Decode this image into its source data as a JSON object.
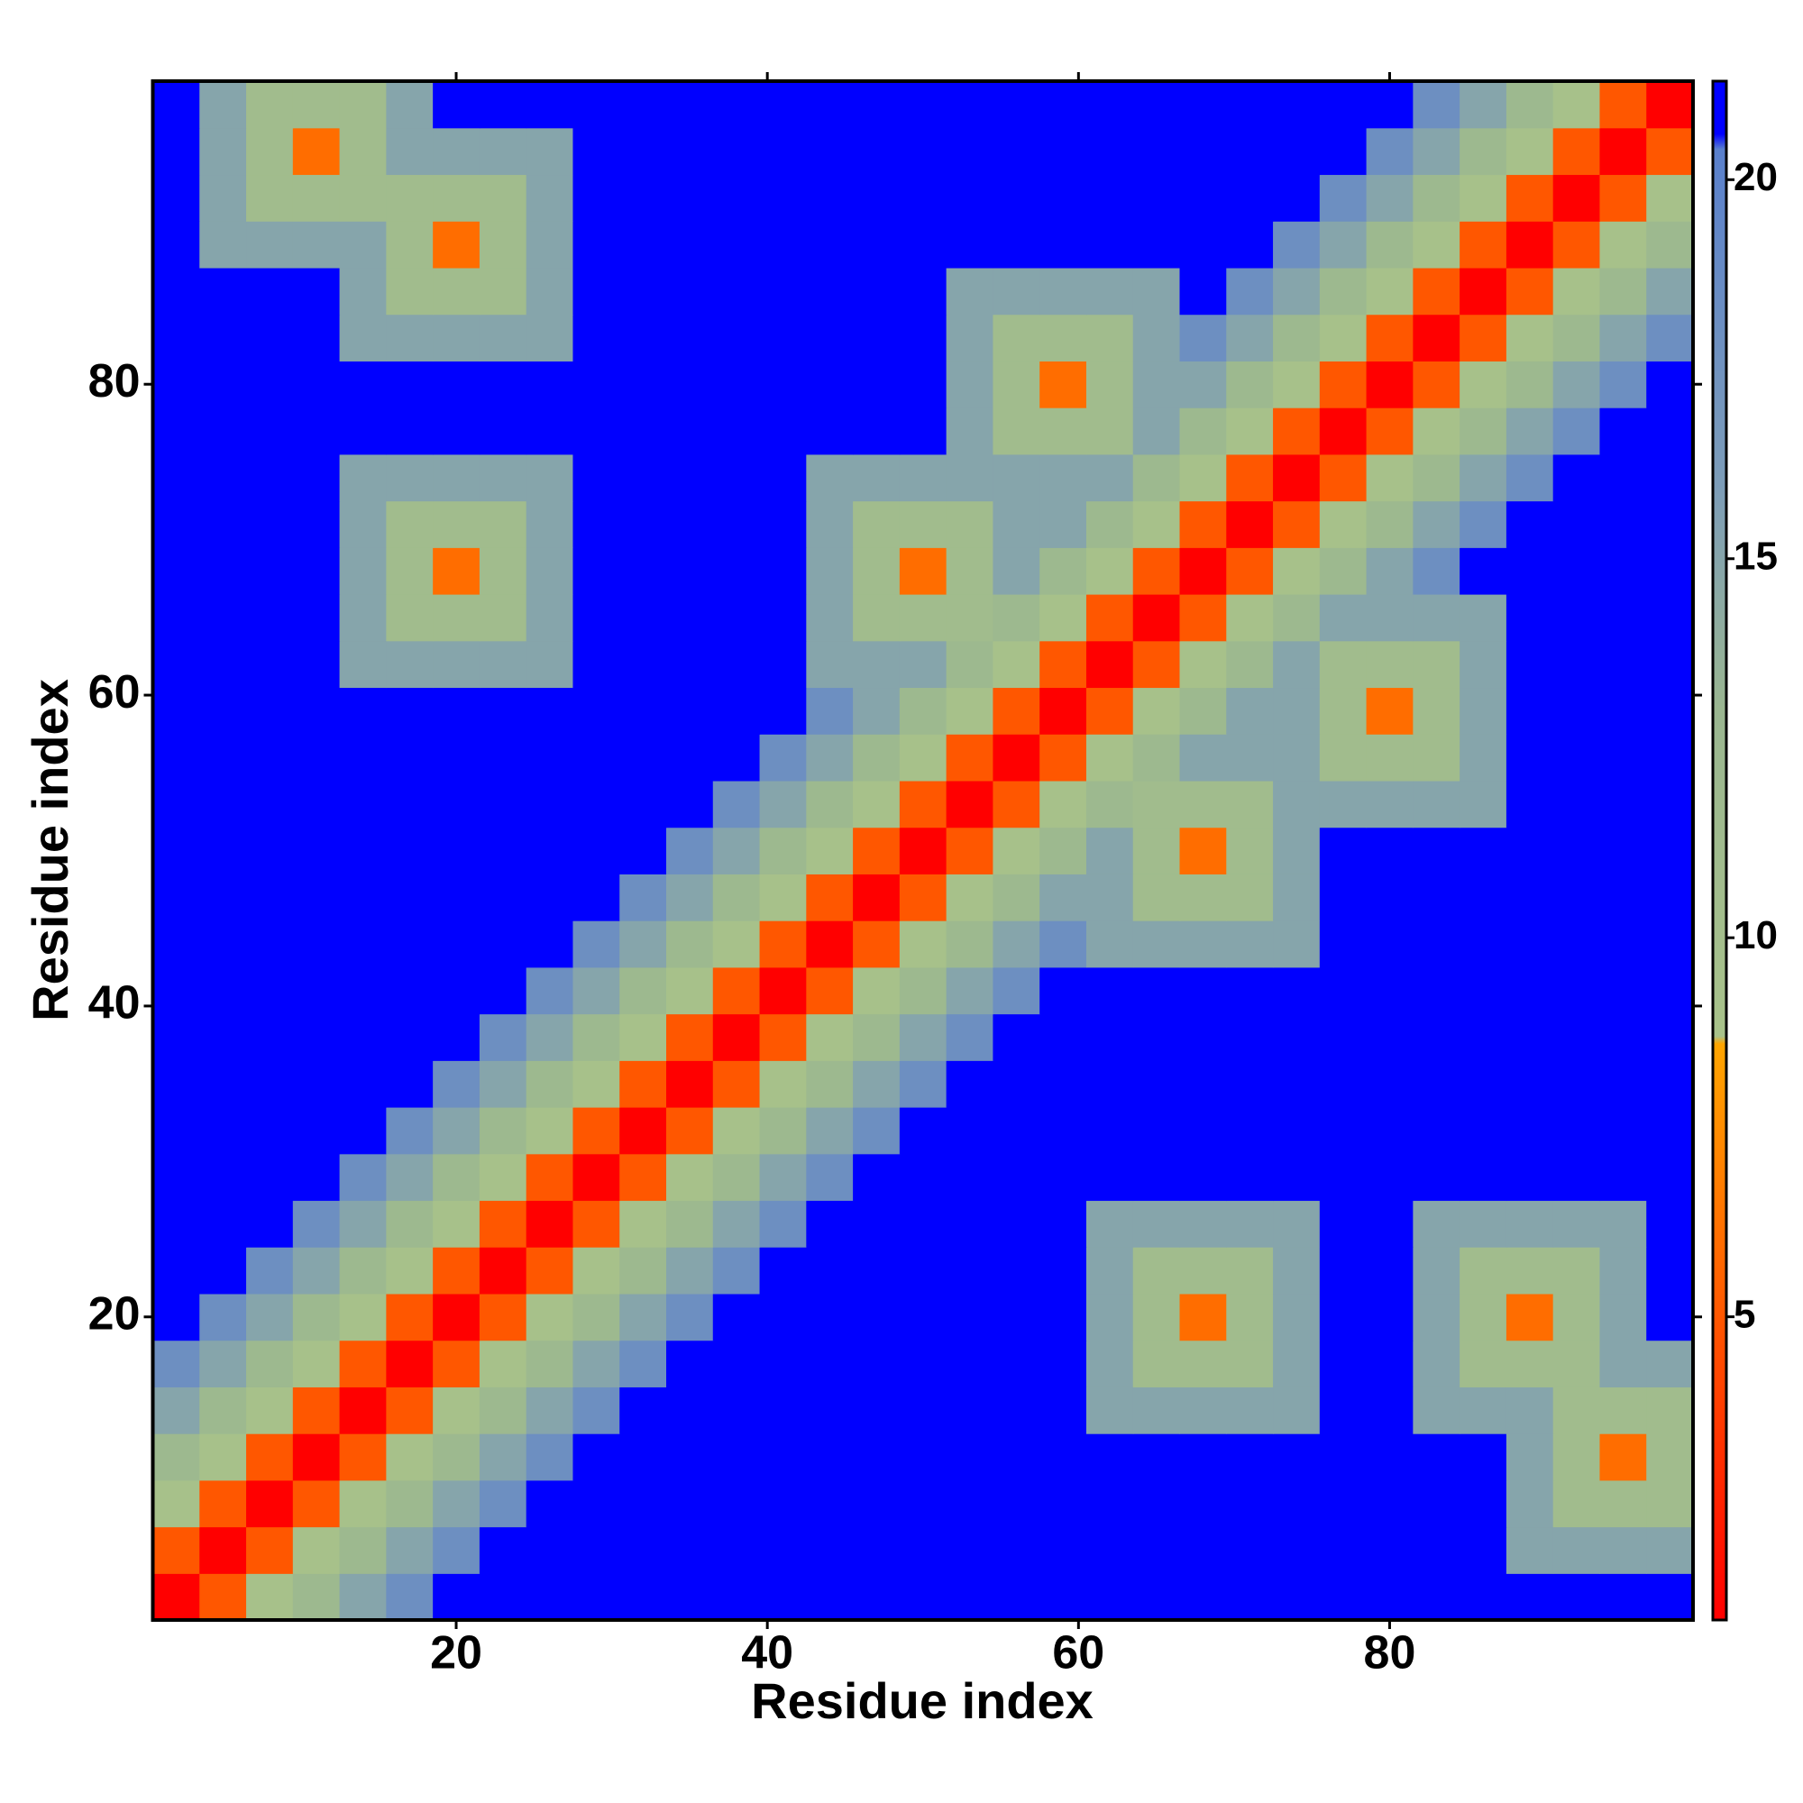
{
  "chart_data": {
    "type": "heatmap",
    "xlabel": "Residue index",
    "ylabel": "Residue index",
    "x": [
      2,
      5,
      8,
      11,
      14,
      17,
      20,
      23,
      26,
      29,
      32,
      35,
      38,
      41,
      44,
      47,
      50,
      53,
      56,
      59,
      62,
      65,
      68,
      71,
      74,
      77,
      80,
      83,
      86,
      89,
      92,
      95,
      98
    ],
    "y": [
      2,
      5,
      8,
      11,
      14,
      17,
      20,
      23,
      26,
      29,
      32,
      35,
      38,
      41,
      44,
      47,
      50,
      53,
      56,
      59,
      62,
      65,
      68,
      71,
      74,
      77,
      80,
      83,
      86,
      89,
      92,
      95,
      98
    ],
    "xlim": [
      0.5,
      99.5
    ],
    "ylim": [
      0.5,
      99.5
    ],
    "xticks": [
      20,
      40,
      60,
      80
    ],
    "yticks": [
      20,
      40,
      60,
      80
    ],
    "clim": [
      1,
      21.3
    ],
    "cticks": [
      5,
      10,
      15,
      20
    ],
    "colorscale": [
      [
        1,
        "#ff0000"
      ],
      [
        8.6,
        "#ffa500"
      ],
      [
        8.7,
        "#a8c28a"
      ],
      [
        13,
        "#9ab690"
      ],
      [
        16,
        "#7c9cb8"
      ],
      [
        20.4,
        "#5a80cc"
      ],
      [
        20.6,
        "#0000ff"
      ],
      [
        21.3,
        "#0000ff"
      ]
    ],
    "z": [
      [
        1,
        5,
        9,
        12,
        15,
        18,
        21,
        21,
        21,
        21,
        21,
        21,
        21,
        21,
        21,
        21,
        21,
        21,
        21,
        21,
        21,
        21,
        21,
        21,
        21,
        21,
        21,
        21,
        21,
        21,
        21,
        21,
        21
      ],
      [
        5,
        1,
        5,
        9,
        12,
        15,
        18,
        21,
        21,
        21,
        21,
        21,
        21,
        21,
        21,
        21,
        21,
        21,
        21,
        21,
        21,
        21,
        21,
        21,
        21,
        21,
        21,
        21,
        21,
        15,
        15,
        15,
        15
      ],
      [
        9,
        5,
        1,
        5,
        9,
        12,
        15,
        18,
        21,
        21,
        21,
        21,
        21,
        21,
        21,
        21,
        21,
        21,
        21,
        21,
        21,
        21,
        21,
        21,
        21,
        21,
        21,
        21,
        21,
        15,
        11,
        11,
        11
      ],
      [
        12,
        9,
        5,
        1,
        5,
        9,
        12,
        15,
        18,
        21,
        21,
        21,
        21,
        21,
        21,
        21,
        21,
        21,
        21,
        21,
        21,
        21,
        21,
        21,
        21,
        21,
        21,
        21,
        21,
        15,
        11,
        6,
        11
      ],
      [
        15,
        12,
        9,
        5,
        1,
        5,
        9,
        12,
        15,
        18,
        21,
        21,
        21,
        21,
        21,
        21,
        21,
        21,
        21,
        21,
        15,
        15,
        15,
        15,
        15,
        21,
        21,
        15,
        15,
        15,
        11,
        11,
        11
      ],
      [
        18,
        15,
        12,
        9,
        5,
        1,
        5,
        9,
        12,
        15,
        18,
        21,
        21,
        21,
        21,
        21,
        21,
        21,
        21,
        21,
        15,
        11,
        11,
        11,
        15,
        21,
        21,
        15,
        11,
        11,
        11,
        15,
        15
      ],
      [
        21,
        18,
        15,
        12,
        9,
        5,
        1,
        5,
        9,
        12,
        15,
        18,
        21,
        21,
        21,
        21,
        21,
        21,
        21,
        21,
        15,
        11,
        6,
        11,
        15,
        21,
        21,
        15,
        11,
        6,
        11,
        15,
        21
      ],
      [
        21,
        21,
        18,
        15,
        12,
        9,
        5,
        1,
        5,
        9,
        12,
        15,
        18,
        21,
        21,
        21,
        21,
        21,
        21,
        21,
        15,
        11,
        11,
        11,
        15,
        21,
        21,
        15,
        11,
        11,
        11,
        15,
        21
      ],
      [
        21,
        21,
        21,
        18,
        15,
        12,
        9,
        5,
        1,
        5,
        9,
        12,
        15,
        18,
        21,
        21,
        21,
        21,
        21,
        21,
        15,
        15,
        15,
        15,
        15,
        21,
        21,
        15,
        15,
        15,
        15,
        15,
        21
      ],
      [
        21,
        21,
        21,
        21,
        18,
        15,
        12,
        9,
        5,
        1,
        5,
        9,
        12,
        15,
        18,
        21,
        21,
        21,
        21,
        21,
        21,
        21,
        21,
        21,
        21,
        21,
        21,
        21,
        21,
        21,
        21,
        21,
        21
      ],
      [
        21,
        21,
        21,
        21,
        21,
        18,
        15,
        12,
        9,
        5,
        1,
        5,
        9,
        12,
        15,
        18,
        21,
        21,
        21,
        21,
        21,
        21,
        21,
        21,
        21,
        21,
        21,
        21,
        21,
        21,
        21,
        21,
        21
      ],
      [
        21,
        21,
        21,
        21,
        21,
        21,
        18,
        15,
        12,
        9,
        5,
        1,
        5,
        9,
        12,
        15,
        18,
        21,
        21,
        21,
        21,
        21,
        21,
        21,
        21,
        21,
        21,
        21,
        21,
        21,
        21,
        21,
        21
      ],
      [
        21,
        21,
        21,
        21,
        21,
        21,
        21,
        18,
        15,
        12,
        9,
        5,
        1,
        5,
        9,
        12,
        15,
        18,
        21,
        21,
        21,
        21,
        21,
        21,
        21,
        21,
        21,
        21,
        21,
        21,
        21,
        21,
        21
      ],
      [
        21,
        21,
        21,
        21,
        21,
        21,
        21,
        21,
        18,
        15,
        12,
        9,
        5,
        1,
        5,
        9,
        12,
        15,
        18,
        21,
        21,
        21,
        21,
        21,
        21,
        21,
        21,
        21,
        21,
        21,
        21,
        21,
        21
      ],
      [
        21,
        21,
        21,
        21,
        21,
        21,
        21,
        21,
        21,
        18,
        15,
        12,
        9,
        5,
        1,
        5,
        9,
        12,
        15,
        18,
        15,
        15,
        15,
        15,
        15,
        21,
        21,
        21,
        21,
        21,
        21,
        21,
        21
      ],
      [
        21,
        21,
        21,
        21,
        21,
        21,
        21,
        21,
        21,
        21,
        18,
        15,
        12,
        9,
        5,
        1,
        5,
        9,
        12,
        15,
        15,
        11,
        11,
        11,
        15,
        21,
        21,
        21,
        21,
        21,
        21,
        21,
        21
      ],
      [
        21,
        21,
        21,
        21,
        21,
        21,
        21,
        21,
        21,
        21,
        21,
        18,
        15,
        12,
        9,
        5,
        1,
        5,
        9,
        12,
        15,
        11,
        6,
        11,
        15,
        21,
        21,
        21,
        21,
        21,
        21,
        21,
        21
      ],
      [
        21,
        21,
        21,
        21,
        21,
        21,
        21,
        21,
        21,
        21,
        21,
        21,
        18,
        15,
        12,
        9,
        5,
        1,
        5,
        9,
        12,
        11,
        11,
        11,
        15,
        15,
        15,
        15,
        15,
        21,
        21,
        21,
        21
      ],
      [
        21,
        21,
        21,
        21,
        21,
        21,
        21,
        21,
        21,
        21,
        21,
        21,
        21,
        18,
        15,
        12,
        9,
        5,
        1,
        5,
        9,
        12,
        15,
        15,
        15,
        11,
        11,
        11,
        15,
        21,
        21,
        21,
        21
      ],
      [
        21,
        21,
        21,
        21,
        21,
        21,
        21,
        21,
        21,
        21,
        21,
        21,
        21,
        21,
        18,
        15,
        12,
        9,
        5,
        1,
        5,
        9,
        12,
        15,
        15,
        11,
        6,
        11,
        15,
        21,
        21,
        21,
        21
      ],
      [
        21,
        21,
        21,
        21,
        15,
        15,
        15,
        15,
        15,
        21,
        21,
        21,
        21,
        21,
        15,
        15,
        15,
        12,
        9,
        5,
        1,
        5,
        9,
        12,
        15,
        11,
        11,
        11,
        15,
        21,
        21,
        21,
        21
      ],
      [
        21,
        21,
        21,
        21,
        15,
        11,
        11,
        11,
        15,
        21,
        21,
        21,
        21,
        21,
        15,
        11,
        11,
        11,
        12,
        9,
        5,
        1,
        5,
        9,
        12,
        15,
        15,
        15,
        15,
        21,
        21,
        21,
        21
      ],
      [
        21,
        21,
        21,
        21,
        15,
        11,
        6,
        11,
        15,
        21,
        21,
        21,
        21,
        21,
        15,
        11,
        6,
        11,
        15,
        12,
        9,
        5,
        1,
        5,
        9,
        12,
        15,
        18,
        21,
        21,
        21,
        21,
        21
      ],
      [
        21,
        21,
        21,
        21,
        15,
        11,
        11,
        11,
        15,
        21,
        21,
        21,
        21,
        21,
        15,
        11,
        11,
        11,
        15,
        15,
        12,
        9,
        5,
        1,
        5,
        9,
        12,
        15,
        18,
        21,
        21,
        21,
        21
      ],
      [
        21,
        21,
        21,
        21,
        15,
        15,
        15,
        15,
        15,
        21,
        21,
        21,
        21,
        21,
        15,
        15,
        15,
        15,
        15,
        15,
        15,
        12,
        9,
        5,
        1,
        5,
        9,
        12,
        15,
        18,
        21,
        21,
        21
      ],
      [
        21,
        21,
        21,
        21,
        21,
        21,
        21,
        21,
        21,
        21,
        21,
        21,
        21,
        21,
        21,
        21,
        21,
        15,
        11,
        11,
        11,
        15,
        12,
        9,
        5,
        1,
        5,
        9,
        12,
        15,
        18,
        21,
        21
      ],
      [
        21,
        21,
        21,
        21,
        21,
        21,
        21,
        21,
        21,
        21,
        21,
        21,
        21,
        21,
        21,
        21,
        21,
        15,
        11,
        6,
        11,
        15,
        15,
        12,
        9,
        5,
        1,
        5,
        9,
        12,
        15,
        18,
        21
      ],
      [
        21,
        21,
        21,
        21,
        15,
        15,
        15,
        15,
        15,
        21,
        21,
        21,
        21,
        21,
        21,
        21,
        21,
        15,
        11,
        11,
        11,
        15,
        18,
        15,
        12,
        9,
        5,
        1,
        5,
        9,
        12,
        15,
        18
      ],
      [
        21,
        21,
        21,
        21,
        15,
        11,
        11,
        11,
        15,
        21,
        21,
        21,
        21,
        21,
        21,
        21,
        21,
        15,
        15,
        15,
        15,
        15,
        21,
        18,
        15,
        12,
        9,
        5,
        1,
        5,
        9,
        12,
        15
      ],
      [
        21,
        15,
        15,
        15,
        15,
        11,
        6,
        11,
        15,
        21,
        21,
        21,
        21,
        21,
        21,
        21,
        21,
        21,
        21,
        21,
        21,
        21,
        21,
        21,
        18,
        15,
        12,
        9,
        5,
        1,
        5,
        9,
        12
      ],
      [
        21,
        15,
        11,
        11,
        11,
        11,
        11,
        11,
        15,
        21,
        21,
        21,
        21,
        21,
        21,
        21,
        21,
        21,
        21,
        21,
        21,
        21,
        21,
        21,
        21,
        18,
        15,
        12,
        9,
        5,
        1,
        5,
        9
      ],
      [
        21,
        15,
        11,
        6,
        11,
        15,
        15,
        15,
        15,
        21,
        21,
        21,
        21,
        21,
        21,
        21,
        21,
        21,
        21,
        21,
        21,
        21,
        21,
        21,
        21,
        21,
        18,
        15,
        12,
        9,
        5,
        1,
        5
      ],
      [
        21,
        15,
        11,
        11,
        11,
        15,
        21,
        21,
        21,
        21,
        21,
        21,
        21,
        21,
        21,
        21,
        21,
        21,
        21,
        21,
        21,
        21,
        21,
        21,
        21,
        21,
        21,
        18,
        15,
        12,
        9,
        5,
        1
      ]
    ]
  }
}
